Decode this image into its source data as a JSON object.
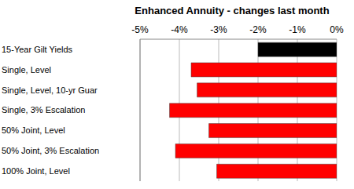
{
  "chart_data": {
    "type": "bar",
    "title": "Enhanced Annuity - changes last month",
    "orientation": "horizontal",
    "categories": [
      "15-Year Gilt Yields",
      "Single, Level",
      "Single, Level, 10-yr Guar",
      "Single, 3% Escalation",
      "50% Joint, Level",
      "50% Joint, 3% Escalation",
      "100% Joint, Level"
    ],
    "values": [
      -2.0,
      -3.7,
      -3.55,
      -4.25,
      -3.25,
      -4.1,
      -3.05
    ],
    "colors": [
      "#000000",
      "#ff0000",
      "#ff0000",
      "#ff0000",
      "#ff0000",
      "#ff0000",
      "#ff0000"
    ],
    "xlim": [
      -5,
      0
    ],
    "xticks": [
      {
        "value": -5,
        "label": "-5%"
      },
      {
        "value": -4,
        "label": "-4%"
      },
      {
        "value": -3,
        "label": "-3%"
      },
      {
        "value": -2,
        "label": "-2%"
      },
      {
        "value": -1,
        "label": "-1%"
      },
      {
        "value": 0,
        "label": "0%"
      }
    ],
    "grid": true
  }
}
